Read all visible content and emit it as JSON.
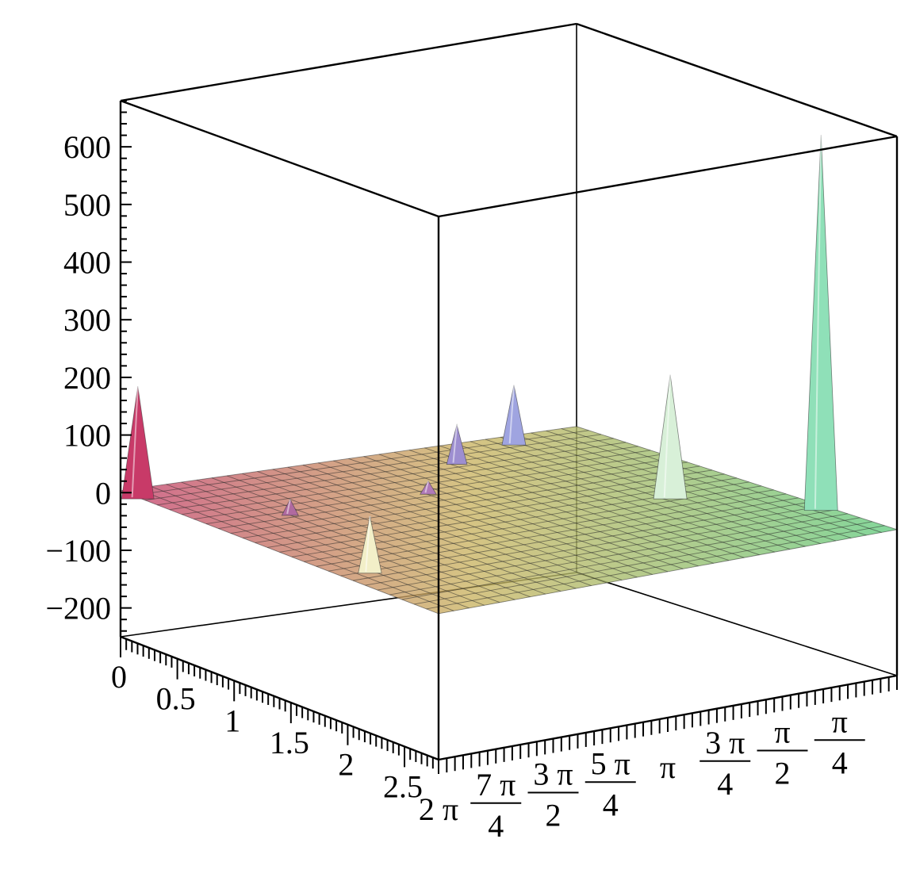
{
  "chart_data": {
    "type": "surface3d",
    "title": "",
    "xlabel": "",
    "ylabel": "",
    "zlabel": "",
    "colors": {
      "frame": "#000000",
      "grid": "#2a2a2a",
      "background": "#ffffff"
    },
    "x_axis": {
      "range": [
        0,
        2.8
      ],
      "tick_labels": [
        "0",
        "0.5",
        "1",
        "1.5",
        "2",
        "2.5"
      ],
      "tick_values": [
        0,
        0.5,
        1,
        1.5,
        2,
        2.5
      ]
    },
    "y_axis": {
      "range_text": [
        "0",
        "2π"
      ],
      "tick_labels": [
        {
          "num": "π",
          "den": "4",
          "value": 0.7854
        },
        {
          "num": "π",
          "den": "2",
          "value": 1.5708
        },
        {
          "num": "3 π",
          "den": "4",
          "value": 2.3562
        },
        {
          "num": "π",
          "den": "",
          "value": 3.1416
        },
        {
          "num": "5 π",
          "den": "4",
          "value": 3.927
        },
        {
          "num": "3 π",
          "den": "2",
          "value": 4.7124
        },
        {
          "num": "7 π",
          "den": "4",
          "value": 5.4978
        },
        {
          "num": "2 π",
          "den": "",
          "value": 6.2832
        }
      ]
    },
    "z_axis": {
      "range": [
        -250,
        680
      ],
      "tick_labels": [
        "600",
        "500",
        "400",
        "300",
        "200",
        "100",
        "0",
        "−100",
        "−200"
      ],
      "tick_values": [
        600,
        500,
        400,
        300,
        200,
        100,
        0,
        -100,
        -200
      ]
    },
    "surface_base": 0,
    "peaks": [
      {
        "x": 0.15,
        "y": 6.28,
        "z": 190,
        "color": "#c83a68"
      },
      {
        "x": 0.8,
        "y": 5.2,
        "z": 25,
        "color": "#b06aa0"
      },
      {
        "x": 1.95,
        "y": 5.9,
        "z": 95,
        "color": "#f2efc8"
      },
      {
        "x": 0.8,
        "y": 3.3,
        "z": 20,
        "color": "#b07ab8"
      },
      {
        "x": 0.35,
        "y": 2.2,
        "z": 65,
        "color": "#9d8ed0"
      },
      {
        "x": 0.15,
        "y": 1.1,
        "z": 100,
        "color": "#9fa4e0"
      },
      {
        "x": 1.55,
        "y": 1.15,
        "z": 210,
        "color": "#d8f0d8"
      },
      {
        "x": 2.2,
        "y": 0.1,
        "z": 640,
        "color": "#8fe0b8"
      }
    ]
  }
}
